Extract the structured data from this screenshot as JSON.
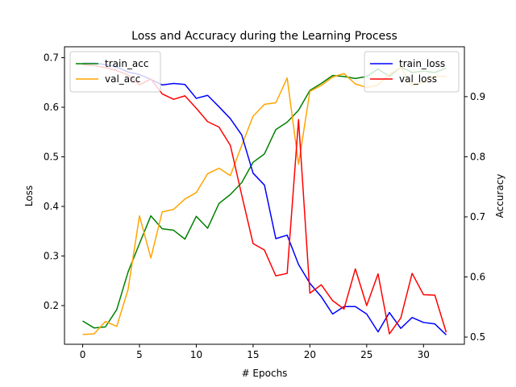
{
  "chart_data": {
    "type": "line",
    "title": "Loss and Accuracy during the Learning Process",
    "xlabel": "# Epochs",
    "ylabel_left": "Loss",
    "ylabel_right": "Accuracy",
    "x": [
      0,
      1,
      2,
      3,
      4,
      5,
      6,
      7,
      8,
      9,
      10,
      11,
      12,
      13,
      14,
      15,
      16,
      17,
      18,
      19,
      20,
      21,
      22,
      23,
      24,
      25,
      26,
      27,
      28,
      29,
      30,
      31,
      32
    ],
    "xlim": [
      -1.6,
      33.6
    ],
    "ylim_left": [
      0.122,
      0.722
    ],
    "ylim_right": [
      0.488,
      0.983
    ],
    "xticks": [
      0,
      5,
      10,
      15,
      20,
      25,
      30
    ],
    "yticks_left": [
      0.2,
      0.3,
      0.4,
      0.5,
      0.6,
      0.7
    ],
    "yticks_right": [
      0.5,
      0.6,
      0.7,
      0.8,
      0.9
    ],
    "legend_left_placement": "top-left",
    "legend_right_placement": "top-right",
    "grid": false,
    "series": [
      {
        "name": "train_acc",
        "axis": "left",
        "color": "#008000",
        "values": [
          0.169,
          0.155,
          0.157,
          0.192,
          0.268,
          0.325,
          0.381,
          0.355,
          0.352,
          0.334,
          0.38,
          0.356,
          0.406,
          0.424,
          0.448,
          0.489,
          0.506,
          0.555,
          0.57,
          0.594,
          0.634,
          0.648,
          0.664,
          0.662,
          0.658,
          0.662,
          0.677,
          0.662,
          0.681,
          0.67,
          0.673,
          0.67,
          0.679
        ]
      },
      {
        "name": "val_acc",
        "axis": "left",
        "color": "#ffa500",
        "values": [
          0.142,
          0.143,
          0.168,
          0.158,
          0.233,
          0.381,
          0.296,
          0.389,
          0.394,
          0.415,
          0.428,
          0.466,
          0.477,
          0.462,
          0.523,
          0.582,
          0.606,
          0.609,
          0.659,
          0.485,
          0.632,
          0.644,
          0.661,
          0.668,
          0.647,
          0.64,
          0.645,
          0.666,
          0.681,
          0.643,
          0.651,
          0.663,
          0.662
        ]
      },
      {
        "name": "train_loss",
        "axis": "left",
        "color": "#0000ff",
        "values": [
          0.689,
          0.689,
          0.686,
          0.681,
          0.671,
          0.666,
          0.656,
          0.645,
          0.648,
          0.646,
          0.618,
          0.624,
          0.601,
          0.577,
          0.544,
          0.467,
          0.443,
          0.335,
          0.342,
          0.283,
          0.245,
          0.218,
          0.183,
          0.198,
          0.198,
          0.183,
          0.147,
          0.186,
          0.154,
          0.176,
          0.166,
          0.163,
          0.141
        ]
      },
      {
        "name": "val_loss",
        "axis": "left",
        "color": "#ff0000",
        "values": [
          0.686,
          0.684,
          0.68,
          0.674,
          0.665,
          0.645,
          0.657,
          0.627,
          0.616,
          0.623,
          0.598,
          0.571,
          0.56,
          0.523,
          0.423,
          0.325,
          0.312,
          0.26,
          0.265,
          0.575,
          0.225,
          0.242,
          0.21,
          0.193,
          0.274,
          0.2,
          0.264,
          0.143,
          0.175,
          0.265,
          0.222,
          0.221,
          0.146
        ]
      }
    ]
  }
}
